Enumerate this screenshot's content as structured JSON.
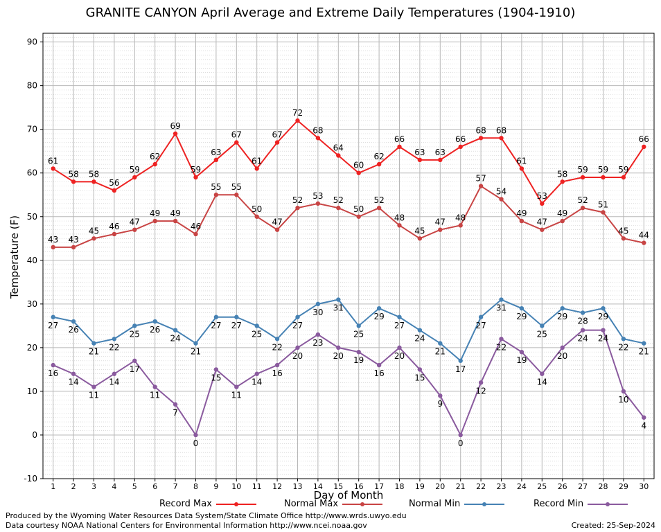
{
  "chart_data": {
    "type": "line",
    "title": "GRANITE CANYON April Average and Extreme Daily Temperatures (1904-1910)",
    "xlabel": "Day of Month",
    "ylabel": "Temperature (F)",
    "xlim": [
      0.5,
      30.5
    ],
    "ylim": [
      -10,
      92
    ],
    "yticks": [
      -10,
      0,
      10,
      20,
      30,
      40,
      50,
      60,
      70,
      80,
      90
    ],
    "x": [
      1,
      2,
      3,
      4,
      5,
      6,
      7,
      8,
      9,
      10,
      11,
      12,
      13,
      14,
      15,
      16,
      17,
      18,
      19,
      20,
      21,
      22,
      23,
      24,
      25,
      26,
      27,
      28,
      29,
      30
    ],
    "grid": true,
    "legend_position": "bottom",
    "series": [
      {
        "name": "Record Max",
        "color": "#ee2222",
        "label_pos": "above",
        "values": [
          61,
          58,
          58,
          56,
          59,
          62,
          69,
          59,
          63,
          67,
          61,
          67,
          72,
          68,
          64,
          60,
          62,
          66,
          63,
          63,
          66,
          68,
          68,
          61,
          53,
          58,
          59,
          59,
          59,
          66
        ]
      },
      {
        "name": "Normal Max",
        "color": "#c84444",
        "label_pos": "above",
        "values": [
          43,
          43,
          45,
          46,
          47,
          49,
          49,
          46,
          55,
          55,
          50,
          47,
          52,
          53,
          52,
          50,
          52,
          48,
          45,
          47,
          48,
          57,
          54,
          49,
          47,
          49,
          52,
          51,
          45,
          44
        ]
      },
      {
        "name": "Normal Min",
        "color": "#4682b4",
        "label_pos": "below",
        "values": [
          27,
          26,
          21,
          22,
          25,
          26,
          24,
          21,
          27,
          27,
          25,
          22,
          27,
          30,
          31,
          25,
          29,
          27,
          24,
          21,
          17,
          27,
          31,
          29,
          25,
          29,
          28,
          29,
          22,
          21
        ]
      },
      {
        "name": "Record Min",
        "color": "#8a5a9e",
        "label_pos": "below",
        "values": [
          16,
          14,
          11,
          14,
          17,
          11,
          7,
          0,
          15,
          11,
          14,
          16,
          20,
          23,
          20,
          19,
          16,
          20,
          15,
          9,
          0,
          12,
          22,
          19,
          14,
          20,
          24,
          24,
          10,
          4
        ]
      }
    ]
  },
  "footer": {
    "produced_by": "Produced by the Wyoming Water Resources Data System/State Climate Office http://www.wrds.uwyo.edu",
    "courtesy": "Data courtesy NOAA National Centers for Environmental Information http://www.ncei.noaa.gov",
    "created": "Created:  25-Sep-2024"
  }
}
